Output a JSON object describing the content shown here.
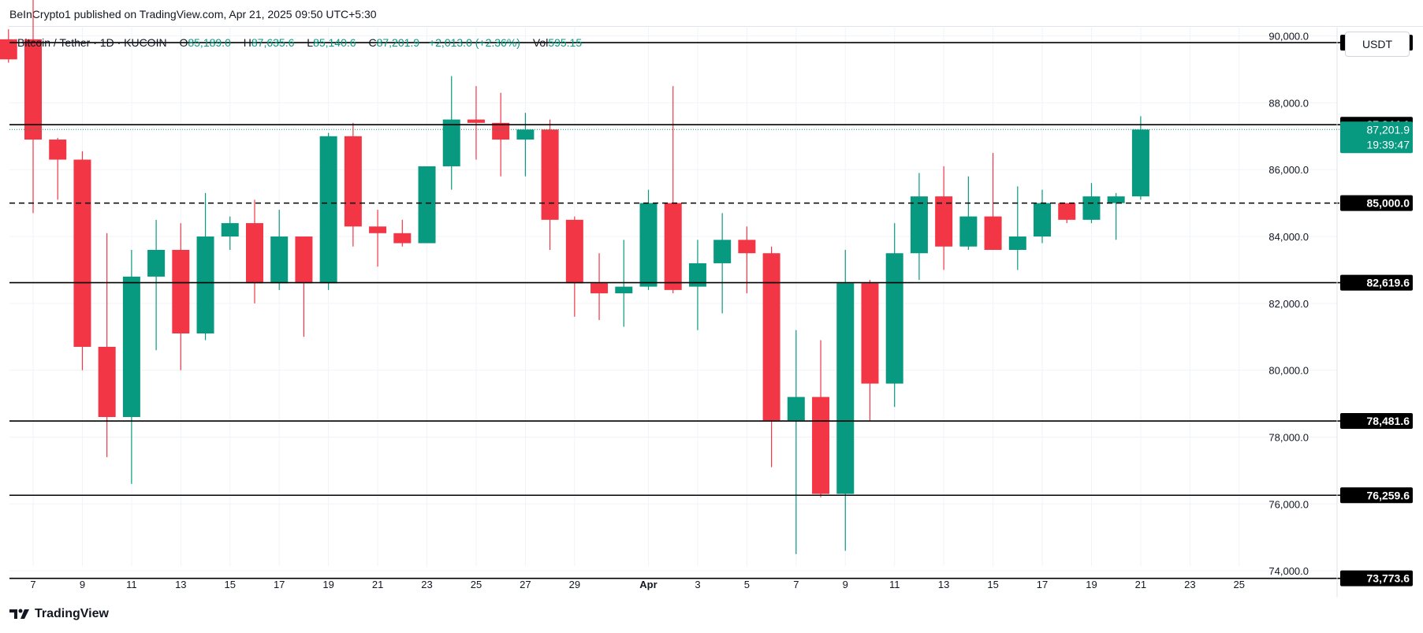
{
  "publisher": "BeInCrypto1 published on TradingView.com, Apr 21, 2025 09:50 UTC+5:30",
  "legend": {
    "symbol": "Bitcoin / Tether · 1D · KUCOIN",
    "open_label": "O",
    "open": "85,189.0",
    "high_label": "H",
    "high": "87,635.6",
    "low_label": "L",
    "low": "85,140.6",
    "close_label": "C",
    "close": "87,201.9",
    "change": "+2,013.0 (+2.36%)",
    "vol_label": "Vol",
    "vol": "595.15"
  },
  "currency_button": "USDT",
  "brand": "TradingView",
  "colors": {
    "up": "#089981",
    "down": "#f23645",
    "level_line": "#000000",
    "grid": "#f0f3fa"
  },
  "chart_data": {
    "type": "candlestick",
    "ylim": [
      73200,
      90250
    ],
    "y_ticks": [
      74000,
      76000,
      78000,
      80000,
      82000,
      84000,
      86000,
      88000,
      90000
    ],
    "y_tick_labels": [
      "74,000.0",
      "76,000.0",
      "78,000.0",
      "80,000.0",
      "82,000.0",
      "84,000.0",
      "86,000.0",
      "88,000.0",
      "90,000.0"
    ],
    "x_tick_labels": [
      {
        "day": 7,
        "label": "7"
      },
      {
        "day": 9,
        "label": "9"
      },
      {
        "day": 11,
        "label": "11"
      },
      {
        "day": 13,
        "label": "13"
      },
      {
        "day": 15,
        "label": "15"
      },
      {
        "day": 17,
        "label": "17"
      },
      {
        "day": 19,
        "label": "19"
      },
      {
        "day": 21,
        "label": "21"
      },
      {
        "day": 23,
        "label": "23"
      },
      {
        "day": 25,
        "label": "25"
      },
      {
        "day": 27,
        "label": "27"
      },
      {
        "day": 29,
        "label": "29"
      },
      {
        "day": 32,
        "label": "Apr"
      },
      {
        "day": 34,
        "label": "3"
      },
      {
        "day": 36,
        "label": "5"
      },
      {
        "day": 38,
        "label": "7"
      },
      {
        "day": 40,
        "label": "9"
      },
      {
        "day": 42,
        "label": "11"
      },
      {
        "day": 44,
        "label": "13"
      },
      {
        "day": 46,
        "label": "15"
      },
      {
        "day": 48,
        "label": "17"
      },
      {
        "day": 50,
        "label": "19"
      },
      {
        "day": 52,
        "label": "21"
      },
      {
        "day": 54,
        "label": "23"
      },
      {
        "day": 56,
        "label": "25"
      }
    ],
    "horizontal_levels": [
      {
        "value": 89800.0,
        "label": "89,800.0",
        "style": "solid"
      },
      {
        "value": 87344.1,
        "label": "87,344.1",
        "style": "solid"
      },
      {
        "value": 85000.0,
        "label": "85,000.0",
        "style": "dashed"
      },
      {
        "value": 82619.6,
        "label": "82,619.6",
        "style": "solid"
      },
      {
        "value": 78481.6,
        "label": "78,481.6",
        "style": "solid"
      },
      {
        "value": 76259.6,
        "label": "76,259.6",
        "style": "solid"
      },
      {
        "value": 73773.6,
        "label": "73,773.6",
        "style": "solid"
      }
    ],
    "last_price": {
      "value": 87201.9,
      "label": "87,201.9",
      "countdown": "19:39:47"
    },
    "candles": [
      {
        "d": 6,
        "o": 89900,
        "h": 90200,
        "l": 89200,
        "c": 89300
      },
      {
        "d": 7,
        "o": 89900,
        "h": 91200,
        "l": 84700,
        "c": 86900
      },
      {
        "d": 8,
        "o": 86900,
        "h": 86950,
        "l": 85100,
        "c": 86300
      },
      {
        "d": 9,
        "o": 86300,
        "h": 86550,
        "l": 80000,
        "c": 80700
      },
      {
        "d": 10,
        "o": 80700,
        "h": 84100,
        "l": 77400,
        "c": 78600
      },
      {
        "d": 11,
        "o": 78600,
        "h": 83600,
        "l": 76600,
        "c": 82800
      },
      {
        "d": 12,
        "o": 82800,
        "h": 84500,
        "l": 80600,
        "c": 83600
      },
      {
        "d": 13,
        "o": 83600,
        "h": 84400,
        "l": 80000,
        "c": 81100
      },
      {
        "d": 14,
        "o": 81100,
        "h": 85300,
        "l": 80900,
        "c": 84000
      },
      {
        "d": 15,
        "o": 84000,
        "h": 84600,
        "l": 83600,
        "c": 84400
      },
      {
        "d": 16,
        "o": 84400,
        "h": 85100,
        "l": 82000,
        "c": 82600
      },
      {
        "d": 17,
        "o": 82600,
        "h": 84800,
        "l": 82400,
        "c": 84000
      },
      {
        "d": 18,
        "o": 84000,
        "h": 84000,
        "l": 81000,
        "c": 82600
      },
      {
        "d": 19,
        "o": 82600,
        "h": 87100,
        "l": 82400,
        "c": 87000
      },
      {
        "d": 20,
        "o": 87000,
        "h": 87400,
        "l": 83700,
        "c": 84300
      },
      {
        "d": 21,
        "o": 84300,
        "h": 84800,
        "l": 83100,
        "c": 84100
      },
      {
        "d": 22,
        "o": 84100,
        "h": 84500,
        "l": 83700,
        "c": 83800
      },
      {
        "d": 23,
        "o": 83800,
        "h": 86100,
        "l": 83800,
        "c": 86100
      },
      {
        "d": 24,
        "o": 86100,
        "h": 88800,
        "l": 85400,
        "c": 87500
      },
      {
        "d": 25,
        "o": 87500,
        "h": 88500,
        "l": 86300,
        "c": 87400
      },
      {
        "d": 26,
        "o": 87400,
        "h": 88300,
        "l": 85800,
        "c": 86900
      },
      {
        "d": 27,
        "o": 86900,
        "h": 87700,
        "l": 85800,
        "c": 87200
      },
      {
        "d": 28,
        "o": 87200,
        "h": 87500,
        "l": 83600,
        "c": 84500
      },
      {
        "d": 29,
        "o": 84500,
        "h": 84600,
        "l": 81600,
        "c": 82600
      },
      {
        "d": 30,
        "o": 82600,
        "h": 83500,
        "l": 81500,
        "c": 82300
      },
      {
        "d": 31,
        "o": 82300,
        "h": 83900,
        "l": 81300,
        "c": 82500
      },
      {
        "d": 32,
        "o": 82500,
        "h": 85400,
        "l": 82400,
        "c": 85000
      },
      {
        "d": 33,
        "o": 85000,
        "h": 88500,
        "l": 82300,
        "c": 82400
      },
      {
        "d": 34,
        "o": 82500,
        "h": 83900,
        "l": 81200,
        "c": 83200
      },
      {
        "d": 35,
        "o": 83200,
        "h": 84700,
        "l": 81700,
        "c": 83900
      },
      {
        "d": 36,
        "o": 83900,
        "h": 84300,
        "l": 82300,
        "c": 83500
      },
      {
        "d": 37,
        "o": 83500,
        "h": 83700,
        "l": 77100,
        "c": 78500
      },
      {
        "d": 38,
        "o": 78500,
        "h": 81200,
        "l": 74500,
        "c": 79200
      },
      {
        "d": 39,
        "o": 79200,
        "h": 80900,
        "l": 76200,
        "c": 76300
      },
      {
        "d": 40,
        "o": 76300,
        "h": 83600,
        "l": 74600,
        "c": 82600
      },
      {
        "d": 41,
        "o": 82600,
        "h": 82700,
        "l": 78500,
        "c": 79600
      },
      {
        "d": 42,
        "o": 79600,
        "h": 84400,
        "l": 78900,
        "c": 83500
      },
      {
        "d": 43,
        "o": 83500,
        "h": 85900,
        "l": 82700,
        "c": 85200
      },
      {
        "d": 44,
        "o": 85200,
        "h": 86100,
        "l": 83000,
        "c": 83700
      },
      {
        "d": 45,
        "o": 83700,
        "h": 85800,
        "l": 83600,
        "c": 84600
      },
      {
        "d": 46,
        "o": 84600,
        "h": 86500,
        "l": 83600,
        "c": 83600
      },
      {
        "d": 47,
        "o": 83600,
        "h": 85500,
        "l": 83000,
        "c": 84000
      },
      {
        "d": 48,
        "o": 84000,
        "h": 85400,
        "l": 83800,
        "c": 85000
      },
      {
        "d": 49,
        "o": 85000,
        "h": 85000,
        "l": 84400,
        "c": 84500
      },
      {
        "d": 50,
        "o": 84500,
        "h": 85600,
        "l": 84400,
        "c": 85200
      },
      {
        "d": 51,
        "o": 85000,
        "h": 85300,
        "l": 83900,
        "c": 85200
      },
      {
        "d": 52,
        "o": 85200,
        "h": 87600,
        "l": 85100,
        "c": 87200
      }
    ]
  }
}
